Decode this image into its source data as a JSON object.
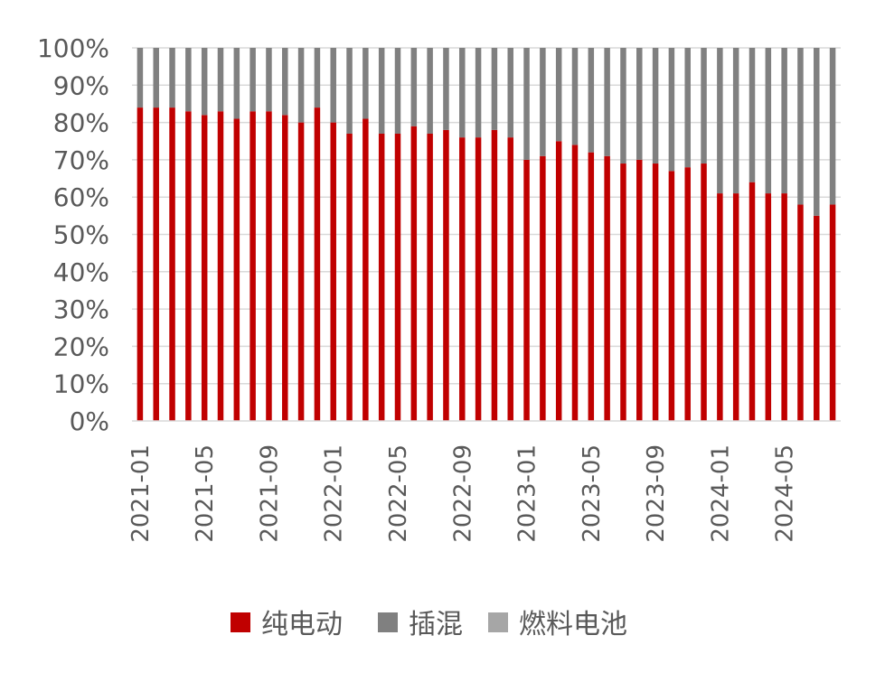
{
  "chart_data": {
    "type": "bar",
    "stacked": true,
    "percent": true,
    "title": "",
    "xlabel": "",
    "ylabel": "",
    "ylim": [
      0,
      100
    ],
    "yticks": [
      "0%",
      "10%",
      "20%",
      "30%",
      "40%",
      "50%",
      "60%",
      "70%",
      "80%",
      "90%",
      "100%"
    ],
    "grid": true,
    "legend_position": "bottom",
    "categories": [
      "2021-01",
      "2021-02",
      "2021-03",
      "2021-04",
      "2021-05",
      "2021-06",
      "2021-07",
      "2021-08",
      "2021-09",
      "2021-10",
      "2021-11",
      "2021-12",
      "2022-01",
      "2022-02",
      "2022-03",
      "2022-04",
      "2022-05",
      "2022-06",
      "2022-07",
      "2022-08",
      "2022-09",
      "2022-10",
      "2022-11",
      "2022-12",
      "2023-01",
      "2023-02",
      "2023-03",
      "2023-04",
      "2023-05",
      "2023-06",
      "2023-07",
      "2023-08",
      "2023-09",
      "2023-10",
      "2023-11",
      "2023-12",
      "2024-01",
      "2024-02",
      "2024-03",
      "2024-04",
      "2024-05",
      "2024-06",
      "2024-07",
      "2024-08"
    ],
    "xtick_labels": [
      "2021-01",
      "2021-05",
      "2021-09",
      "2022-01",
      "2022-05",
      "2022-09",
      "2023-01",
      "2023-05",
      "2023-09",
      "2024-01",
      "2024-05"
    ],
    "series": [
      {
        "name": "纯电动",
        "color": "#c00000",
        "values": [
          84,
          84,
          84,
          83,
          82,
          83,
          81,
          83,
          83,
          82,
          80,
          84,
          80,
          77,
          81,
          77,
          77,
          79,
          77,
          78,
          76,
          76,
          78,
          76,
          70,
          71,
          75,
          74,
          72,
          71,
          69,
          70,
          69,
          67,
          68,
          69,
          61,
          61,
          64,
          61,
          61,
          58,
          55,
          58
        ]
      },
      {
        "name": "插混",
        "color": "#808080",
        "values": [
          16,
          16,
          16,
          17,
          18,
          17,
          19,
          17,
          17,
          18,
          20,
          16,
          20,
          23,
          19,
          23,
          23,
          21,
          23,
          22,
          24,
          24,
          22,
          24,
          30,
          29,
          25,
          26,
          28,
          29,
          31,
          30,
          31,
          33,
          32,
          31,
          39,
          39,
          36,
          39,
          39,
          42,
          45,
          42
        ]
      },
      {
        "name": "燃料电池",
        "color": "#a6a6a6",
        "values": [
          0,
          0,
          0,
          0,
          0,
          0,
          0,
          0,
          0,
          0,
          0,
          0,
          0,
          0,
          0,
          0,
          0,
          0,
          0,
          0,
          0,
          0,
          0,
          0,
          0,
          0,
          0,
          0,
          0,
          0,
          0,
          0,
          0,
          0,
          0,
          0,
          0,
          0,
          0,
          0,
          0,
          0,
          0,
          0
        ]
      }
    ]
  }
}
